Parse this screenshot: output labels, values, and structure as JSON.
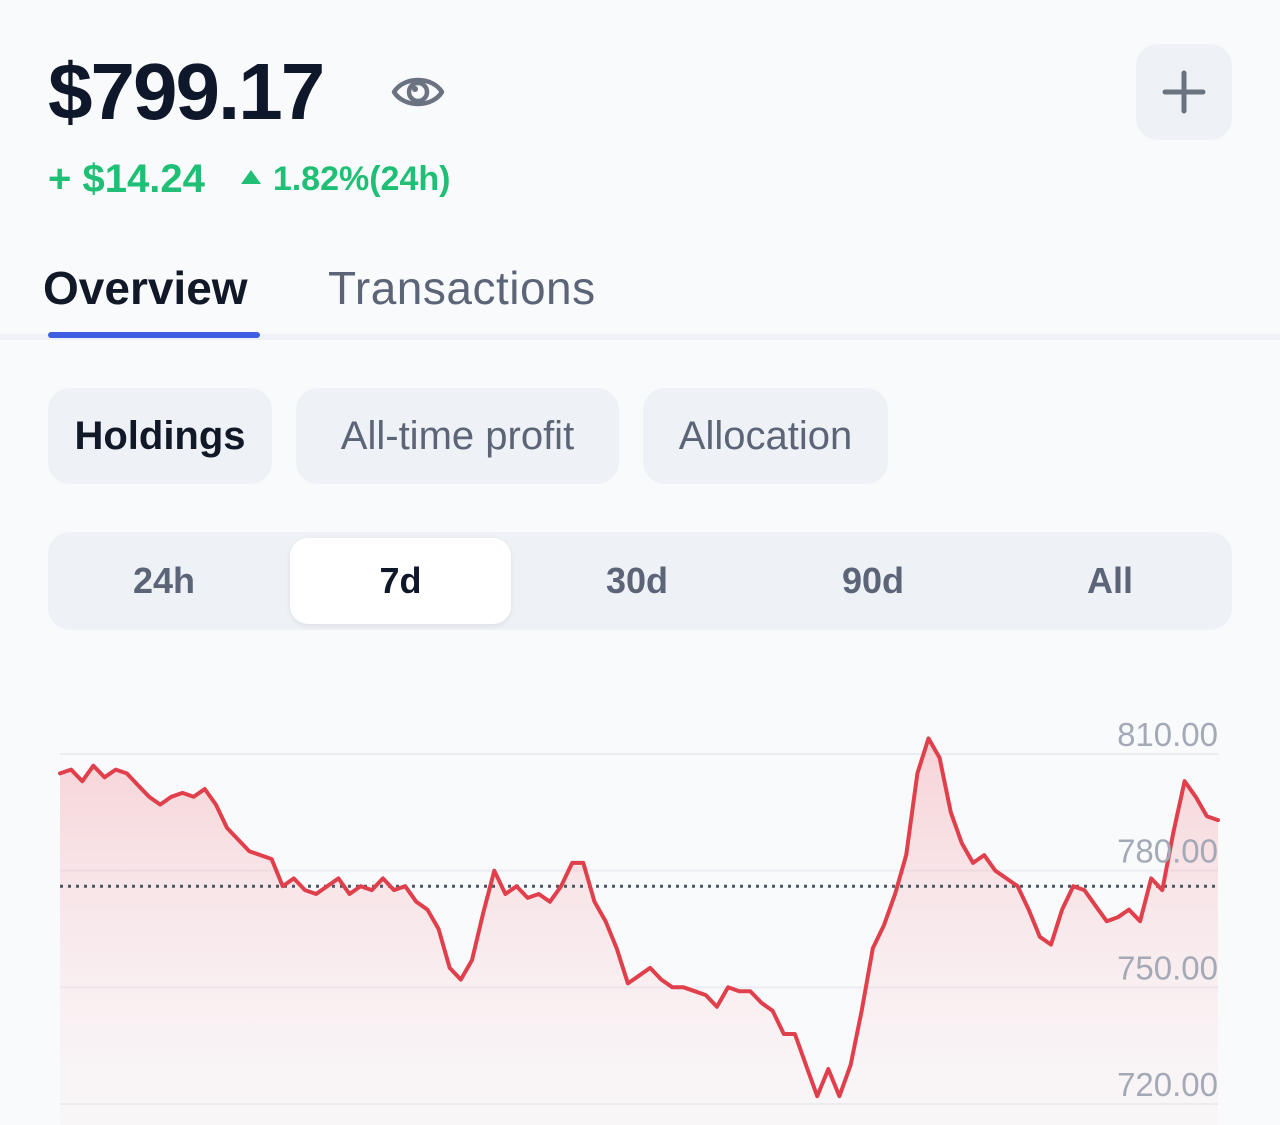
{
  "header": {
    "balance": "$799.17",
    "change_abs": "+ $14.24",
    "change_pct": "1.82%(24h)",
    "positive_color": "#1fbf75"
  },
  "tabs": [
    {
      "label": "Overview",
      "active": true
    },
    {
      "label": "Transactions",
      "active": false
    }
  ],
  "chips": [
    {
      "label": "Holdings",
      "active": true
    },
    {
      "label": "All-time profit",
      "active": false
    },
    {
      "label": "Allocation",
      "active": false
    }
  ],
  "ranges": [
    {
      "label": "24h",
      "active": false
    },
    {
      "label": "7d",
      "active": true
    },
    {
      "label": "30d",
      "active": false
    },
    {
      "label": "90d",
      "active": false
    },
    {
      "label": "All",
      "active": false
    }
  ],
  "chart_data": {
    "type": "area",
    "line_color": "#e0404b",
    "ylim": [
      715,
      820
    ],
    "yticks": [
      "810.00",
      "780.00",
      "750.00",
      "720.00"
    ],
    "ytick_values": [
      810,
      780,
      750,
      720
    ],
    "reference_value": 776,
    "values": [
      805,
      806,
      803,
      807,
      804,
      806,
      805,
      802,
      799,
      797,
      799,
      800,
      799,
      801,
      797,
      791,
      788,
      785,
      784,
      783,
      776,
      778,
      775,
      774,
      776,
      778,
      774,
      776,
      775,
      778,
      775,
      776,
      772,
      770,
      765,
      755,
      752,
      757,
      769,
      780,
      774,
      776,
      773,
      774,
      772,
      776,
      782,
      782,
      772,
      767,
      760,
      751,
      753,
      755,
      752,
      750,
      750,
      749,
      748,
      745,
      750,
      749,
      749,
      746,
      744,
      738,
      738,
      730,
      722,
      729,
      722,
      730,
      744,
      760,
      766,
      774,
      784,
      805,
      814,
      809,
      795,
      787,
      782,
      784,
      780,
      778,
      776,
      770,
      763,
      761,
      770,
      776,
      775,
      771,
      767,
      768,
      770,
      767,
      778,
      775,
      790,
      803,
      799,
      794,
      793
    ]
  }
}
